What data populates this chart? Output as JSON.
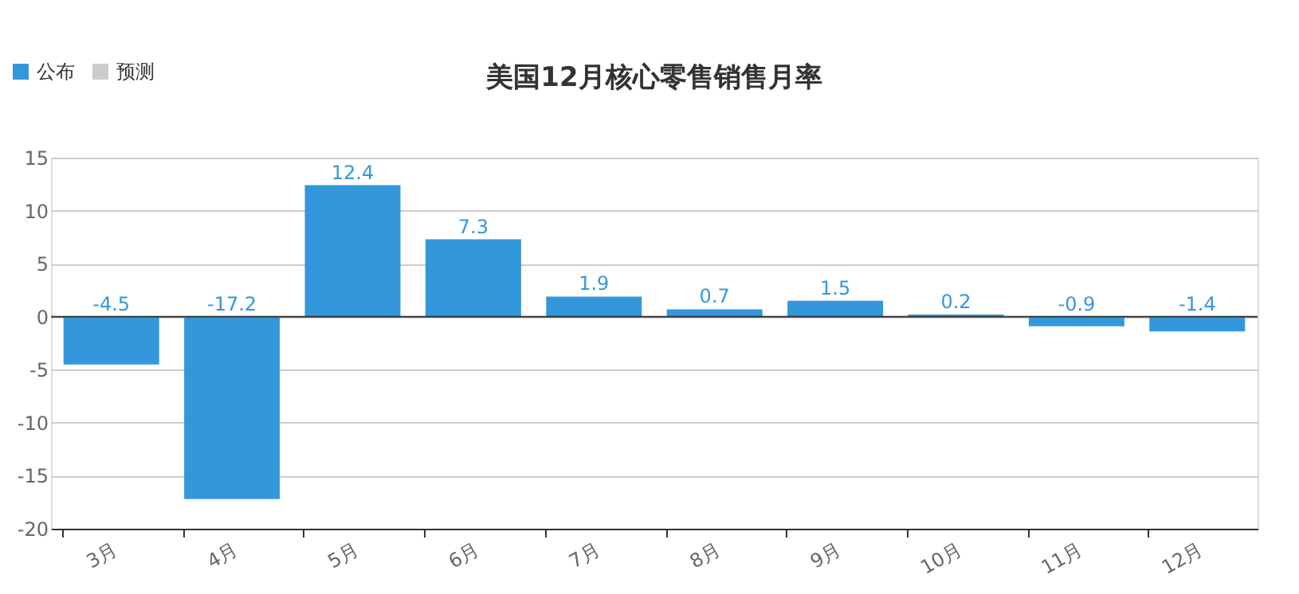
{
  "chart_data": {
    "type": "bar",
    "title": "美国12月核心零售销售月率",
    "categories": [
      "3月",
      "4月",
      "5月",
      "6月",
      "7月",
      "8月",
      "9月",
      "10月",
      "11月",
      "12月"
    ],
    "series": [
      {
        "name": "公布",
        "color": "#3398db",
        "values": [
          -4.5,
          -17.2,
          12.4,
          7.3,
          1.9,
          0.7,
          1.5,
          0.2,
          -0.9,
          -1.4
        ]
      },
      {
        "name": "预测",
        "color": "#cccccc",
        "values": [
          null,
          null,
          null,
          null,
          null,
          null,
          null,
          null,
          null,
          null
        ]
      }
    ],
    "ylim": [
      -20,
      15
    ],
    "yticks": [
      -20,
      -15,
      -10,
      -5,
      0,
      5,
      10,
      15
    ],
    "grid": "y",
    "legend": "top left",
    "data_labels": true
  }
}
